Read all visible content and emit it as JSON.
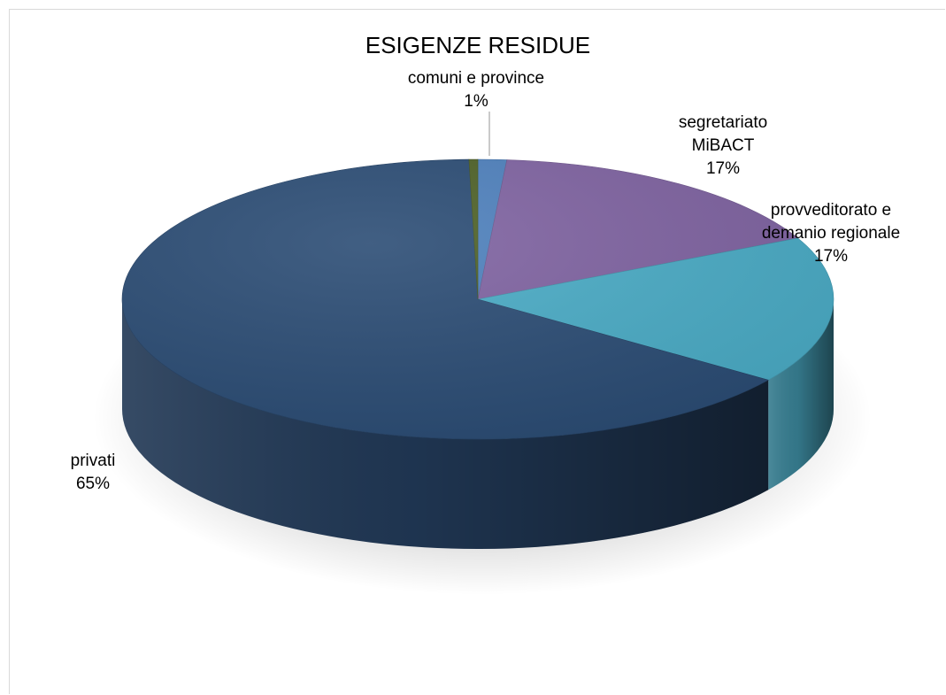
{
  "chart_data": {
    "type": "pie",
    "title": "ESIGENZE RESIDUE",
    "three_d": true,
    "slices": [
      {
        "label": [
          "comuni e province"
        ],
        "pct_label": "1%",
        "value": 1.3,
        "color": "#4f81bd"
      },
      {
        "label": [
          "segretariato",
          "MiBACT"
        ],
        "pct_label": "17%",
        "value": 16.5,
        "color": "#8064a2"
      },
      {
        "label": [
          "provveditorato e",
          "demanio regionale"
        ],
        "pct_label": "17%",
        "value": 17.0,
        "color": "#4bacc6"
      },
      {
        "label": [
          "privati"
        ],
        "pct_label": "65%",
        "value": 64.8,
        "color": "#2c4d75"
      },
      {
        "label": [],
        "pct_label": "",
        "value": 0.4,
        "color": "#4f6228"
      }
    ]
  }
}
